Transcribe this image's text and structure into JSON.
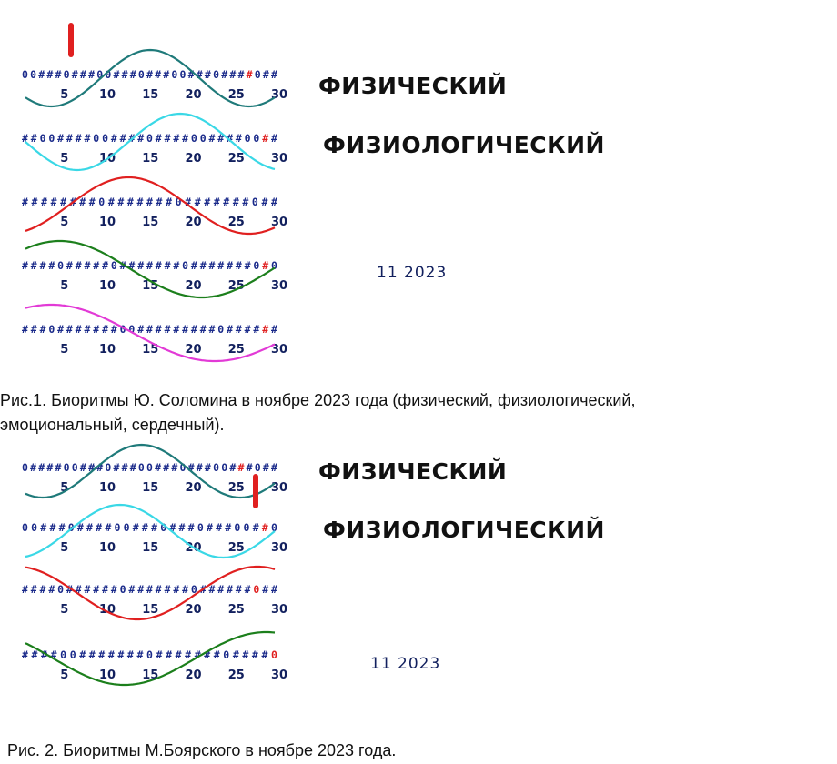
{
  "figures": [
    {
      "labels": {
        "physical": "ФИЗИЧЕСКИЙ",
        "physiological": "ФИЗИОЛОГИЧЕСКИЙ",
        "date": "11  2023"
      },
      "caption": "Рис.1. Биоритмы Ю. Соломина в ноябре 2023 года (физический, физиологический,\nэмоциональный, сердечный)."
    },
    {
      "labels": {
        "physical": "ФИЗИЧЕСКИЙ",
        "physiological": "ФИЗИОЛОГИЧЕСКИЙ",
        "date": "11  2023"
      },
      "caption": "Рис. 2. Биоритмы М.Боярского в ноябре 2023 года."
    }
  ],
  "chart_data": [
    {
      "type": "line",
      "title": "",
      "x_ticks": [
        5,
        10,
        15,
        20,
        25,
        30
      ],
      "xlim": [
        1,
        30
      ],
      "ylim": [
        -1,
        1
      ],
      "grid": false,
      "marker_day": 6,
      "rows": [
        {
          "strip": "00###0###00###0###00###0####0##",
          "highlight_day": 28,
          "color": "#1f7a7a",
          "period": 23,
          "peak_day": 15.5
        },
        {
          "strip": "##00####00####0####00####00##",
          "highlight_day": 28,
          "color": "#3ad8e6",
          "period": 24,
          "peak_day": 19
        },
        {
          "strip": "########0#######0#######0##",
          "highlight_day": 28,
          "color": "#e02020",
          "period": 28,
          "peak_day": 13
        },
        {
          "strip": "####0#####0#######0#######0#0",
          "highlight_day": 28,
          "color": "#1c7f1c",
          "period": 33,
          "peak_day": 5
        },
        {
          "strip": "###0#######00#########0######",
          "highlight_day": 28,
          "color": "#e23ad6",
          "period": 38,
          "peak_day": 42
        }
      ]
    },
    {
      "type": "line",
      "title": "",
      "x_ticks": [
        5,
        10,
        15,
        20,
        25,
        30
      ],
      "xlim": [
        1,
        30
      ],
      "ylim": [
        -1,
        1
      ],
      "grid": false,
      "marker_day": 27,
      "rows": [
        {
          "strip": "0####00###0###00###0###00###0##",
          "highlight_day": 27,
          "color": "#1f7a7a",
          "period": 23,
          "peak_day": 14.5
        },
        {
          "strip": "00###0####00###0###0###00##0",
          "highlight_day": 27,
          "color": "#3ad8e6",
          "period": 24,
          "peak_day": 12
        },
        {
          "strip": "####0######0#######0######0##",
          "highlight_day": 27,
          "color": "#e02020",
          "period": 28,
          "peak_day": 28
        },
        {
          "strip": "####00#######0#######0####0",
          "highlight_day": 27,
          "color": "#1c7f1c",
          "period": 33,
          "peak_day": 29
        }
      ]
    }
  ]
}
